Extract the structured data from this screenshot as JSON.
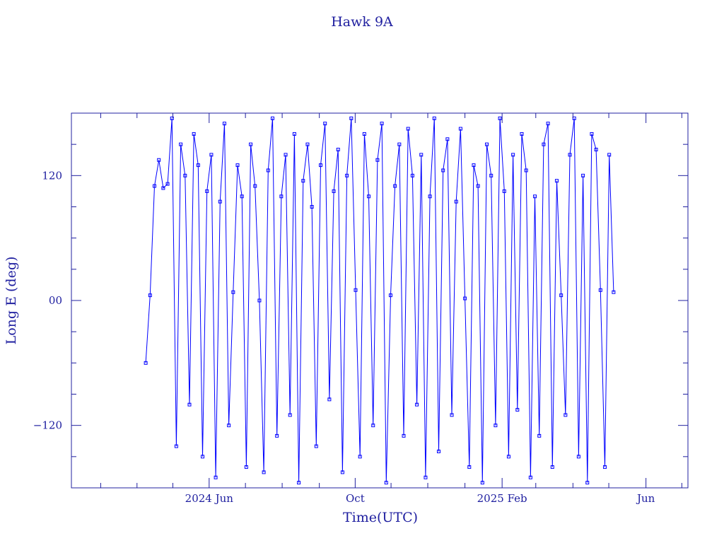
{
  "chart_data": {
    "type": "line",
    "title": "Hawk 9A",
    "x_label": "Time(UTC)",
    "y_label": "Long E (deg)",
    "color": "#0000ff",
    "xlim": [
      2024.1,
      2025.51
    ],
    "xticks": [
      {
        "value": 2024.415,
        "label": "2024 Jun"
      },
      {
        "value": 2024.749,
        "label": "Oct"
      },
      {
        "value": 2025.085,
        "label": "2025 Feb"
      },
      {
        "value": 2025.414,
        "label": "Jun"
      }
    ],
    "xminor_ticks": [
      2024.167,
      2024.25,
      2024.332,
      2024.498,
      2024.582,
      2024.667,
      2024.831,
      2024.915,
      2025.0,
      2025.162,
      2025.247,
      2025.329,
      2025.496
    ],
    "ylim": [
      -180,
      180
    ],
    "yticks": [
      {
        "value": -120,
        "label": "−120"
      },
      {
        "value": 0,
        "label": "00"
      },
      120
    ],
    "yminor_ticks": [
      -150,
      -90,
      -60,
      -30,
      30,
      60,
      90,
      150
    ],
    "x": [
      2024.27,
      2024.28,
      2024.29,
      2024.3,
      2024.31,
      2024.32,
      2024.33,
      2024.34,
      2024.35,
      2024.36,
      2024.37,
      2024.38,
      2024.39,
      2024.4,
      2024.41,
      2024.42,
      2024.43,
      2024.44,
      2024.45,
      2024.46,
      2024.47,
      2024.48,
      2024.49,
      2024.5,
      2024.51,
      2024.52,
      2024.53,
      2024.54,
      2024.55,
      2024.56,
      2024.57,
      2024.58,
      2024.59,
      2024.6,
      2024.61,
      2024.62,
      2024.63,
      2024.64,
      2024.65,
      2024.66,
      2024.67,
      2024.68,
      2024.69,
      2024.7,
      2024.71,
      2024.72,
      2024.73,
      2024.74,
      2024.75,
      2024.76,
      2024.77,
      2024.78,
      2024.79,
      2024.8,
      2024.81,
      2024.82,
      2024.83,
      2024.84,
      2024.85,
      2024.86,
      2024.87,
      2024.88,
      2024.89,
      2024.9,
      2024.91,
      2024.92,
      2024.93,
      2024.94,
      2024.95,
      2024.96,
      2024.97,
      2024.98,
      2024.99,
      2025.0,
      2025.01,
      2025.02,
      2025.03,
      2025.04,
      2025.05,
      2025.06,
      2025.07,
      2025.08,
      2025.09,
      2025.1,
      2025.11,
      2025.12,
      2025.13,
      2025.14,
      2025.15,
      2025.16,
      2025.17,
      2025.18,
      2025.19,
      2025.2,
      2025.21,
      2025.22,
      2025.23,
      2025.24,
      2025.25,
      2025.26,
      2025.27,
      2025.28,
      2025.29,
      2025.3,
      2025.31,
      2025.32,
      2025.33,
      2025.34
    ],
    "values": [
      -60,
      5,
      110,
      135,
      108,
      112,
      175,
      -140,
      150,
      120,
      -100,
      160,
      130,
      -150,
      105,
      140,
      -170,
      95,
      170,
      -120,
      8,
      130,
      100,
      -160,
      150,
      110,
      0,
      -165,
      125,
      175,
      -130,
      100,
      140,
      -110,
      160,
      -175,
      115,
      150,
      90,
      -140,
      130,
      170,
      -95,
      105,
      145,
      -165,
      120,
      175,
      10,
      -150,
      160,
      100,
      -120,
      135,
      170,
      -175,
      5,
      110,
      150,
      -130,
      165,
      120,
      -100,
      140,
      -170,
      100,
      175,
      -145,
      125,
      155,
      -110,
      95,
      165,
      2,
      -160,
      130,
      110,
      -175,
      150,
      120,
      -120,
      175,
      105,
      -150,
      140,
      -105,
      160,
      125,
      -170,
      100,
      -130,
      150,
      170,
      -160,
      115,
      5,
      -110,
      140,
      175,
      -150,
      120,
      -175,
      160,
      145,
      10,
      -160,
      140,
      8
    ]
  }
}
